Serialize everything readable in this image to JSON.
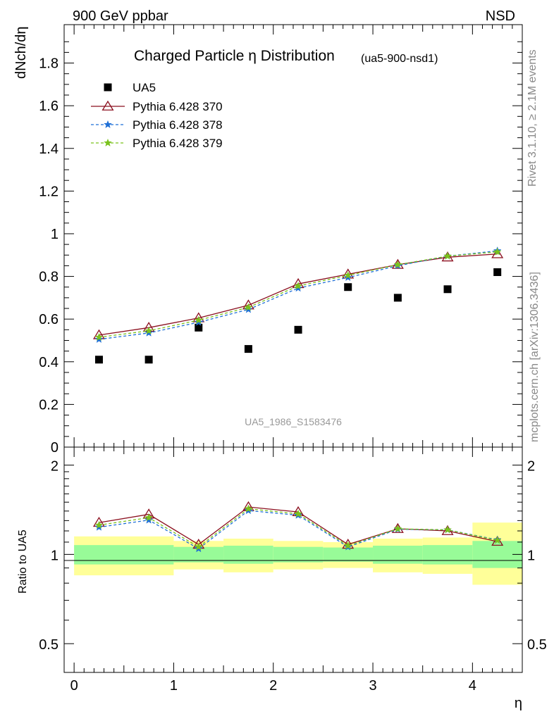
{
  "header": {
    "left_label": "900 GeV ppbar",
    "right_label": "NSD",
    "rivet_note": "Rivet 3.1.10, ≥ 2.1M events",
    "mcplots_note": "mcplots.cern.ch [arXiv:1306.3436]"
  },
  "chart_data": [
    {
      "type": "scatter",
      "title": "Charged Particle η Distribution",
      "subtitle": "(ua5-900-nsd1)",
      "watermark": "UA5_1986_S1583476",
      "ylabel": "dNch/dη",
      "xlim": [
        -0.1,
        4.5
      ],
      "ylim": [
        0,
        1.98
      ],
      "y_ticks": [
        "0",
        "0.2",
        "0.4",
        "0.6",
        "0.8",
        "1",
        "1.2",
        "1.4",
        "1.6",
        "1.8"
      ],
      "x": [
        0.25,
        0.75,
        1.25,
        1.75,
        2.25,
        2.75,
        3.25,
        3.75,
        4.25
      ],
      "series": [
        {
          "name": "UA5",
          "color": "#000000",
          "marker": "square",
          "values": [
            0.41,
            0.41,
            0.56,
            0.46,
            0.55,
            0.75,
            0.7,
            0.74,
            0.82
          ]
        },
        {
          "name": "Pythia 6.428 370",
          "color": "#8b0f1e",
          "marker": "triangle",
          "line": "solid",
          "values": [
            0.525,
            0.56,
            0.605,
            0.665,
            0.765,
            0.81,
            0.855,
            0.89,
            0.905
          ]
        },
        {
          "name": "Pythia 6.428 378",
          "color": "#1f6fd6",
          "marker": "star",
          "line": "dashed",
          "values": [
            0.505,
            0.535,
            0.585,
            0.645,
            0.745,
            0.795,
            0.85,
            0.895,
            0.92
          ]
        },
        {
          "name": "Pythia 6.428 379",
          "color": "#7ac21c",
          "marker": "star",
          "line": "dashed",
          "values": [
            0.515,
            0.545,
            0.595,
            0.655,
            0.755,
            0.805,
            0.855,
            0.895,
            0.915
          ]
        }
      ]
    },
    {
      "type": "line",
      "ylabel": "Ratio to UA5",
      "xlabel": "η",
      "log_scale_y": true,
      "xlim": [
        -0.1,
        4.5
      ],
      "ylim": [
        0.4,
        2.3
      ],
      "x_ticks": [
        "0",
        "1",
        "2",
        "3",
        "4"
      ],
      "y_ticks": [
        "0.5",
        "1",
        "2"
      ],
      "bands": {
        "x_edges": [
          0,
          1,
          1.5,
          2,
          2.5,
          3,
          3.5,
          4,
          4.5
        ],
        "green": [
          [
            0.925,
            1.075
          ],
          [
            0.94,
            1.06
          ],
          [
            0.93,
            1.07
          ],
          [
            0.94,
            1.06
          ],
          [
            0.945,
            1.055
          ],
          [
            0.93,
            1.07
          ],
          [
            0.925,
            1.075
          ],
          [
            0.9,
            1.11
          ]
        ],
        "yellow": [
          [
            0.85,
            1.15
          ],
          [
            0.89,
            1.11
          ],
          [
            0.87,
            1.13
          ],
          [
            0.89,
            1.11
          ],
          [
            0.9,
            1.1
          ],
          [
            0.87,
            1.13
          ],
          [
            0.86,
            1.14
          ],
          [
            0.79,
            1.28
          ]
        ]
      },
      "x": [
        0.25,
        0.75,
        1.25,
        1.75,
        2.25,
        2.75,
        3.25,
        3.75,
        4.25
      ],
      "series": [
        {
          "name": "Pythia 6.428 370",
          "color": "#8b0f1e",
          "values": [
            1.28,
            1.365,
            1.08,
            1.445,
            1.39,
            1.08,
            1.22,
            1.2,
            1.105
          ]
        },
        {
          "name": "Pythia 6.428 378",
          "color": "#1f6fd6",
          "values": [
            1.235,
            1.305,
            1.045,
            1.405,
            1.355,
            1.06,
            1.215,
            1.21,
            1.12
          ]
        },
        {
          "name": "Pythia 6.428 379",
          "color": "#7ac21c",
          "values": [
            1.255,
            1.33,
            1.06,
            1.425,
            1.37,
            1.07,
            1.22,
            1.21,
            1.115
          ]
        }
      ]
    }
  ]
}
